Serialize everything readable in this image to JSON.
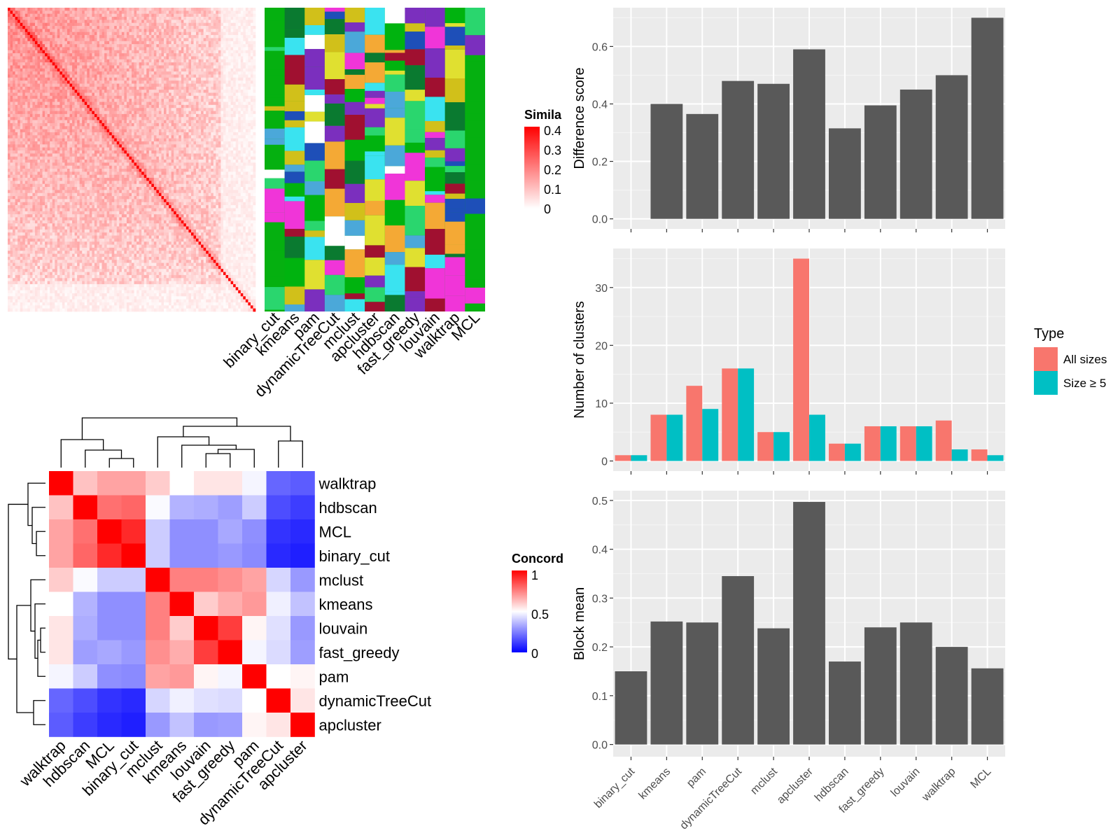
{
  "colors": {
    "panel_bg": "#EBEBEB",
    "grid_major": "#FFFFFF",
    "grid_minor": "#F4F4F4",
    "bar_fill": "#595959",
    "all_sizes": "#F8766D",
    "size5": "#00BFC4",
    "heat_red": "#FF0000",
    "heat_blue": "#0000FF",
    "heat_white": "#FFFFFF"
  },
  "top_left": {
    "similarity_legend_title": "Simila",
    "similarity_legend_ticks": [
      "0.4",
      "0.3",
      "0.2",
      "0.1",
      "0"
    ],
    "method_labels": [
      "binary_cut",
      "kmeans",
      "pam",
      "dynamicTreeCut",
      "mclust",
      "apcluster",
      "hdbscan",
      "fast_greedy",
      "louvain",
      "walktrap",
      "MCL"
    ]
  },
  "concordance": {
    "legend_title": "Concord",
    "legend_ticks": [
      "1",
      "0.5",
      "0"
    ],
    "row_labels": [
      "walktrap",
      "hdbscan",
      "MCL",
      "binary_cut",
      "mclust",
      "kmeans",
      "louvain",
      "fast_greedy",
      "pam",
      "dynamicTreeCut",
      "apcluster"
    ],
    "col_labels": [
      "walktrap",
      "hdbscan",
      "MCL",
      "binary_cut",
      "mclust",
      "kmeans",
      "louvain",
      "fast_greedy",
      "pam",
      "dynamicTreeCut",
      "apcluster"
    ],
    "matrix": [
      [
        1.0,
        0.62,
        0.68,
        0.68,
        0.6,
        0.5,
        0.55,
        0.55,
        0.48,
        0.2,
        0.18
      ],
      [
        0.62,
        1.0,
        0.78,
        0.8,
        0.49,
        0.35,
        0.34,
        0.31,
        0.4,
        0.15,
        0.12
      ],
      [
        0.68,
        0.78,
        1.0,
        0.92,
        0.4,
        0.28,
        0.28,
        0.33,
        0.28,
        0.1,
        0.08
      ],
      [
        0.68,
        0.8,
        0.92,
        1.0,
        0.4,
        0.28,
        0.28,
        0.3,
        0.27,
        0.08,
        0.06
      ],
      [
        0.6,
        0.49,
        0.4,
        0.4,
        1.0,
        0.75,
        0.75,
        0.72,
        0.68,
        0.42,
        0.3
      ],
      [
        0.5,
        0.35,
        0.28,
        0.28,
        0.75,
        1.0,
        0.6,
        0.66,
        0.7,
        0.47,
        0.38
      ],
      [
        0.55,
        0.34,
        0.28,
        0.28,
        0.75,
        0.6,
        1.0,
        0.88,
        0.52,
        0.44,
        0.3
      ],
      [
        0.55,
        0.31,
        0.33,
        0.3,
        0.72,
        0.66,
        0.88,
        1.0,
        0.48,
        0.43,
        0.31
      ],
      [
        0.48,
        0.4,
        0.28,
        0.27,
        0.68,
        0.7,
        0.52,
        0.48,
        1.0,
        0.5,
        0.52
      ],
      [
        0.2,
        0.15,
        0.1,
        0.08,
        0.42,
        0.47,
        0.44,
        0.43,
        0.5,
        1.0,
        0.55
      ],
      [
        0.18,
        0.12,
        0.08,
        0.06,
        0.3,
        0.38,
        0.3,
        0.31,
        0.52,
        0.55,
        1.0
      ]
    ]
  },
  "chart_data": [
    {
      "type": "bar",
      "ylabel": "Difference score",
      "categories": [
        "binary_cut",
        "kmeans",
        "pam",
        "dynamicTreeCut",
        "mclust",
        "apcluster",
        "hdbscan",
        "fast_greedy",
        "louvain",
        "walktrap",
        "MCL"
      ],
      "values": [
        0.0,
        0.4,
        0.365,
        0.48,
        0.47,
        0.59,
        0.315,
        0.395,
        0.45,
        0.5,
        0.7
      ],
      "ylim": [
        -0.035,
        0.735
      ],
      "yticks": [
        0.0,
        0.2,
        0.4,
        0.6
      ],
      "ytick_labels": [
        "0.0",
        "0.2",
        "0.4",
        "0.6"
      ],
      "grid": true
    },
    {
      "type": "bar",
      "ylabel": "Number of clusters",
      "categories": [
        "binary_cut",
        "kmeans",
        "pam",
        "dynamicTreeCut",
        "mclust",
        "apcluster",
        "hdbscan",
        "fast_greedy",
        "louvain",
        "walktrap",
        "MCL"
      ],
      "series": [
        {
          "name": "All sizes",
          "values": [
            1,
            8,
            13,
            16,
            5,
            35,
            3,
            6,
            6,
            7,
            2
          ]
        },
        {
          "name": "Size ≥ 5",
          "values": [
            1,
            8,
            9,
            16,
            5,
            8,
            3,
            6,
            6,
            2,
            1
          ]
        }
      ],
      "ylim": [
        -1.75,
        36.75
      ],
      "yticks": [
        0,
        10,
        20,
        30
      ],
      "ytick_labels": [
        "0",
        "10",
        "20",
        "30"
      ],
      "legend_title": "Type",
      "legend_position": "right",
      "grid": true
    },
    {
      "type": "bar",
      "ylabel": "Block mean",
      "categories": [
        "binary_cut",
        "kmeans",
        "pam",
        "dynamicTreeCut",
        "mclust",
        "apcluster",
        "hdbscan",
        "fast_greedy",
        "louvain",
        "walktrap",
        "MCL"
      ],
      "values": [
        0.15,
        0.252,
        0.25,
        0.345,
        0.238,
        0.497,
        0.17,
        0.24,
        0.25,
        0.2,
        0.156
      ],
      "ylim": [
        -0.025,
        0.52
      ],
      "yticks": [
        0.0,
        0.1,
        0.2,
        0.3,
        0.4,
        0.5
      ],
      "ytick_labels": [
        "0.0",
        "0.1",
        "0.2",
        "0.3",
        "0.4",
        "0.5"
      ],
      "grid": true
    }
  ]
}
